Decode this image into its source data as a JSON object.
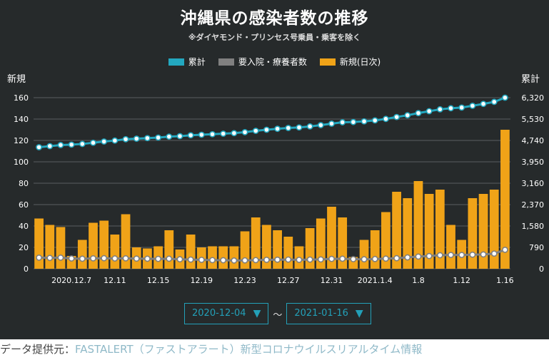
{
  "title": "沖縄県の感染者数の推移",
  "subtitle": "※ダイヤモンド・プリンセス号乗員・乗客を除く",
  "legend": [
    {
      "label": "累計",
      "color": "#23a8c0"
    },
    {
      "label": "要入院・療養者数",
      "color": "#808080"
    },
    {
      "label": "新規(日次)",
      "color": "#f0a318"
    }
  ],
  "axis_titles": {
    "left": "新規",
    "right": "累計"
  },
  "date_range": {
    "start": "2020-12-04",
    "separator": "〜",
    "end": "2021-01-16"
  },
  "footer": {
    "label": "データ提供元：",
    "link": "FASTALERT（ファストアラート）新型コロナウイルスリアルタイム情報"
  },
  "chart_data": {
    "type": "bar",
    "x_tick_labels": [
      {
        "index": 3,
        "label": "2020.12.7"
      },
      {
        "index": 7,
        "label": "12.11"
      },
      {
        "index": 11,
        "label": "12.15"
      },
      {
        "index": 15,
        "label": "12.19"
      },
      {
        "index": 19,
        "label": "12.23"
      },
      {
        "index": 23,
        "label": "12.27"
      },
      {
        "index": 27,
        "label": "12.31"
      },
      {
        "index": 31,
        "label": "2021.1.4"
      },
      {
        "index": 35,
        "label": "1.8"
      },
      {
        "index": 39,
        "label": "1.12"
      },
      {
        "index": 43,
        "label": "1.16"
      }
    ],
    "left_axis": {
      "ticks": [
        0,
        20,
        40,
        60,
        80,
        100,
        120,
        140,
        160
      ],
      "ylim": [
        0,
        160
      ]
    },
    "right_axis": {
      "ticks": [
        "0",
        "790",
        "1,580",
        "2,370",
        "3,160",
        "3,950",
        "4,740",
        "5,530",
        "6,320"
      ],
      "ylim": [
        0,
        6320
      ]
    },
    "series": [
      {
        "name": "新規(日次)",
        "type": "bar",
        "axis": "left",
        "values": [
          47,
          41,
          39,
          12,
          27,
          43,
          45,
          32,
          51,
          20,
          19,
          21,
          36,
          18,
          32,
          20,
          21,
          21,
          21,
          35,
          48,
          41,
          36,
          30,
          21,
          38,
          47,
          58,
          48,
          11,
          27,
          36,
          53,
          72,
          66,
          82,
          70,
          74,
          41,
          27,
          66,
          70,
          74,
          130
        ]
      },
      {
        "name": "累計",
        "type": "line",
        "axis": "right",
        "values": [
          4490,
          4530,
          4570,
          4585,
          4610,
          4655,
          4700,
          4735,
          4785,
          4805,
          4825,
          4845,
          4880,
          4898,
          4930,
          4950,
          4970,
          4990,
          5010,
          5045,
          5095,
          5135,
          5170,
          5200,
          5220,
          5258,
          5305,
          5360,
          5410,
          5420,
          5445,
          5480,
          5535,
          5605,
          5670,
          5750,
          5820,
          5890,
          5930,
          5955,
          6020,
          6090,
          6165,
          6320
        ]
      },
      {
        "name": "要入院・療養者数",
        "type": "line",
        "axis": "right",
        "values": [
          410,
          400,
          410,
          380,
          370,
          385,
          390,
          380,
          385,
          375,
          370,
          365,
          370,
          350,
          340,
          330,
          320,
          315,
          305,
          310,
          320,
          330,
          335,
          340,
          330,
          340,
          345,
          365,
          370,
          355,
          350,
          360,
          375,
          390,
          420,
          450,
          470,
          500,
          510,
          510,
          520,
          530,
          560,
          700
        ]
      }
    ]
  }
}
